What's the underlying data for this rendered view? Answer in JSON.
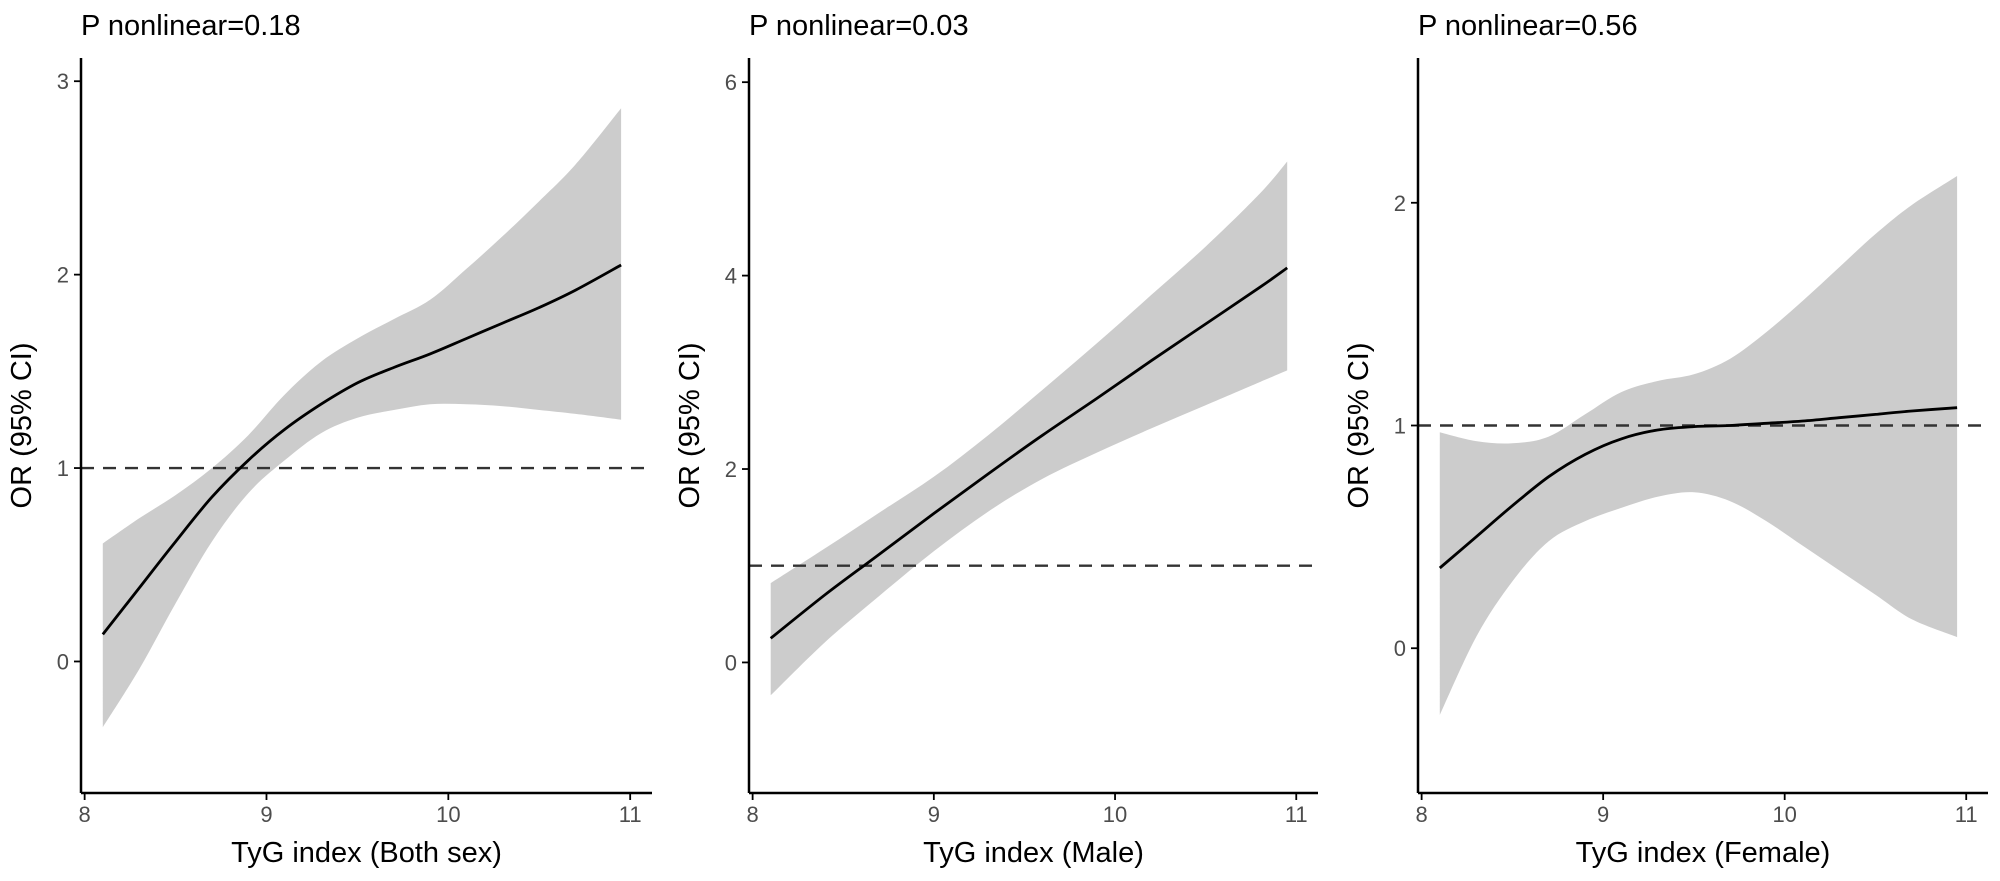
{
  "chart_data": [
    {
      "type": "line",
      "title": "P nonlinear=0.18",
      "xlabel": "TyG index (Both sex)",
      "ylabel": "OR (95% CI)",
      "xlim": [
        7.98,
        11.12
      ],
      "ylim": [
        -0.68,
        3.12
      ],
      "xticks": [
        8,
        9,
        10,
        11
      ],
      "yticks": [
        0,
        1,
        2,
        3
      ],
      "reference_y": 1,
      "series": [
        {
          "name": "OR",
          "x": [
            8.1,
            8.3,
            8.5,
            8.7,
            8.9,
            9.1,
            9.3,
            9.5,
            9.7,
            9.9,
            10.1,
            10.3,
            10.5,
            10.7,
            10.95
          ],
          "y": [
            0.14,
            0.38,
            0.62,
            0.85,
            1.04,
            1.2,
            1.33,
            1.44,
            1.52,
            1.59,
            1.67,
            1.75,
            1.83,
            1.92,
            2.05
          ]
        },
        {
          "name": "Lower 95% CI",
          "x": [
            8.1,
            8.3,
            8.5,
            8.7,
            8.9,
            9.1,
            9.3,
            9.5,
            9.7,
            9.9,
            10.1,
            10.3,
            10.5,
            10.7,
            10.95
          ],
          "y": [
            -0.34,
            -0.04,
            0.3,
            0.62,
            0.87,
            1.04,
            1.18,
            1.26,
            1.3,
            1.33,
            1.33,
            1.32,
            1.3,
            1.28,
            1.25
          ]
        },
        {
          "name": "Upper 95% CI",
          "x": [
            8.1,
            8.3,
            8.5,
            8.7,
            8.9,
            9.1,
            9.3,
            9.5,
            9.7,
            9.9,
            10.1,
            10.3,
            10.5,
            10.7,
            10.95
          ],
          "y": [
            0.61,
            0.74,
            0.86,
            1.0,
            1.17,
            1.38,
            1.55,
            1.67,
            1.77,
            1.87,
            2.03,
            2.2,
            2.38,
            2.57,
            2.86
          ]
        }
      ]
    },
    {
      "type": "line",
      "title": "P nonlinear=0.03",
      "xlabel": "TyG index (Male)",
      "ylabel": "OR (95% CI)",
      "xlim": [
        7.98,
        11.12
      ],
      "ylim": [
        -1.35,
        6.25
      ],
      "xticks": [
        8,
        9,
        10,
        11
      ],
      "yticks": [
        0,
        2,
        4,
        6
      ],
      "reference_y": 1,
      "series": [
        {
          "name": "OR",
          "x": [
            8.1,
            8.4,
            8.7,
            9.0,
            9.3,
            9.6,
            9.9,
            10.2,
            10.5,
            10.8,
            10.95
          ],
          "y": [
            0.25,
            0.7,
            1.12,
            1.54,
            1.95,
            2.35,
            2.73,
            3.12,
            3.5,
            3.88,
            4.08
          ]
        },
        {
          "name": "Lower 95% CI",
          "x": [
            8.1,
            8.4,
            8.7,
            9.0,
            9.3,
            9.6,
            9.9,
            10.2,
            10.5,
            10.8,
            10.95
          ],
          "y": [
            -0.34,
            0.21,
            0.69,
            1.15,
            1.56,
            1.9,
            2.17,
            2.42,
            2.66,
            2.9,
            3.02
          ]
        },
        {
          "name": "Upper 95% CI",
          "x": [
            8.1,
            8.4,
            8.7,
            9.0,
            9.3,
            9.6,
            9.9,
            10.2,
            10.5,
            10.8,
            10.95
          ],
          "y": [
            0.82,
            1.18,
            1.55,
            1.92,
            2.35,
            2.82,
            3.3,
            3.8,
            4.3,
            4.85,
            5.18
          ]
        }
      ]
    },
    {
      "type": "line",
      "title": "P nonlinear=0.56",
      "xlabel": "TyG index (Female)",
      "ylabel": "OR (95% CI)",
      "xlim": [
        7.98,
        11.12
      ],
      "ylim": [
        -0.65,
        2.65
      ],
      "xticks": [
        8,
        9,
        10,
        11
      ],
      "yticks": [
        0,
        1,
        2
      ],
      "reference_y": 1,
      "series": [
        {
          "name": "OR",
          "x": [
            8.1,
            8.3,
            8.5,
            8.7,
            8.9,
            9.1,
            9.3,
            9.5,
            9.7,
            9.9,
            10.1,
            10.3,
            10.5,
            10.7,
            10.95
          ],
          "y": [
            0.36,
            0.5,
            0.64,
            0.77,
            0.87,
            0.94,
            0.98,
            0.995,
            1.0,
            1.01,
            1.02,
            1.035,
            1.05,
            1.065,
            1.08
          ]
        },
        {
          "name": "Lower 95% CI",
          "x": [
            8.1,
            8.3,
            8.5,
            8.7,
            8.9,
            9.1,
            9.3,
            9.5,
            9.7,
            9.9,
            10.1,
            10.3,
            10.5,
            10.7,
            10.95
          ],
          "y": [
            -0.3,
            0.05,
            0.3,
            0.48,
            0.57,
            0.63,
            0.68,
            0.7,
            0.66,
            0.57,
            0.46,
            0.35,
            0.24,
            0.13,
            0.05
          ]
        },
        {
          "name": "Upper 95% CI",
          "x": [
            8.1,
            8.3,
            8.5,
            8.7,
            8.9,
            9.1,
            9.3,
            9.5,
            9.7,
            9.9,
            10.1,
            10.3,
            10.5,
            10.7,
            10.95
          ],
          "y": [
            0.97,
            0.93,
            0.92,
            0.95,
            1.05,
            1.15,
            1.2,
            1.23,
            1.3,
            1.42,
            1.56,
            1.71,
            1.86,
            1.99,
            2.12
          ]
        }
      ]
    }
  ],
  "colors": {
    "ci_band": "#cccccc",
    "fit_line": "#000000",
    "reference_line": "#333333"
  }
}
